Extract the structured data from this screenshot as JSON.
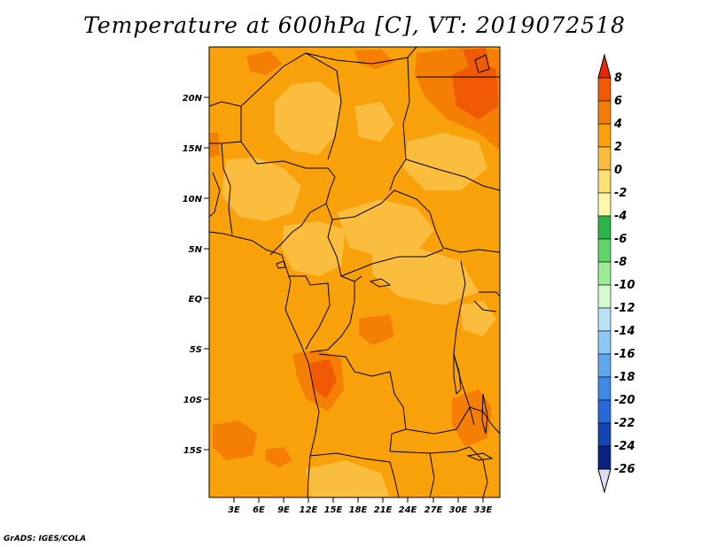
{
  "title": "Temperature at 600hPa [C], VT: 2019072518",
  "credit": "GrADS: IGES/COLA",
  "lat_labels": [
    "20N",
    "15N",
    "10N",
    "5N",
    "EQ",
    "5S",
    "10S",
    "15S"
  ],
  "lon_labels": [
    "3E",
    "6E",
    "9E",
    "12E",
    "15E",
    "18E",
    "21E",
    "24E",
    "27E",
    "30E",
    "33E"
  ],
  "colorbar": {
    "levels": [
      "8",
      "6",
      "4",
      "2",
      "0",
      "-2",
      "-4",
      "-6",
      "-8",
      "-10",
      "-12",
      "-14",
      "-16",
      "-18",
      "-20",
      "-22",
      "-24",
      "-26"
    ],
    "colors": [
      "#e8280a",
      "#f05a05",
      "#f57e04",
      "#f9a10b",
      "#fbbd3e",
      "#fde073",
      "#fdf7aa",
      "#2db44a",
      "#5fd469",
      "#9eeb97",
      "#d6f9d2",
      "#b9e2f8",
      "#8ec8f5",
      "#5fa8ee",
      "#3e8be6",
      "#2769d8",
      "#1444b5",
      "#0a2380",
      "#0b0b55"
    ],
    "over_color": "#e8280a",
    "under_color": "#dcdcf0"
  },
  "field_colors": {
    "base": "#f9a10b",
    "warm": "#f57e04",
    "hot": "#f05a05",
    "cool": "#fbbd3e"
  }
}
